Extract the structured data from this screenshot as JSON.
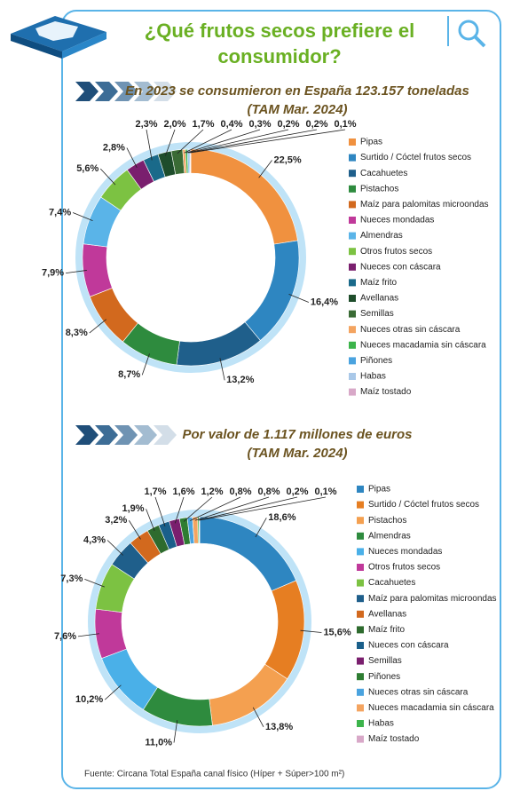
{
  "header": {
    "title": "¿Qué frutos secos prefiere el consumidor?"
  },
  "chart_data": [
    {
      "type": "donut",
      "title": "En 2023 se consumieron en España 123.157 toneladas",
      "subtitle": "(TAM Mar. 2024)",
      "categories": [
        "Pipas",
        "Surtido / Cóctel frutos secos",
        "Cacahuetes",
        "Pistachos",
        "Maíz para palomitas microondas",
        "Nueces mondadas",
        "Almendras",
        "Otros frutos secos",
        "Nueces con cáscara",
        "Maíz frito",
        "Avellanas",
        "Semillas",
        "Nueces otras sin cáscara",
        "Nueces macadamia sin cáscara",
        "Piñones",
        "Habas",
        "Maíz tostado"
      ],
      "values": [
        22.5,
        16.4,
        13.2,
        8.7,
        8.3,
        7.9,
        7.4,
        5.6,
        2.8,
        2.3,
        2.0,
        1.7,
        0.4,
        0.3,
        0.2,
        0.2,
        0.1
      ],
      "value_labels": [
        "22,5%",
        "16,4%",
        "13,2%",
        "8,7%",
        "8,3%",
        "7,9%",
        "7,4%",
        "5,6%",
        "2,8%",
        "2,3%",
        "2,0%",
        "1,7%",
        "0,4%",
        "0,3%",
        "0,2%",
        "0,2%",
        "0,1%"
      ],
      "colors": [
        "#f0913f",
        "#2e86c1",
        "#1f5f8b",
        "#2e8b3e",
        "#d2691e",
        "#c0399a",
        "#5ab4e8",
        "#7cc242",
        "#7a1f6e",
        "#1a6a8a",
        "#1e4d2b",
        "#3a6b35",
        "#f4a460",
        "#3cb44b",
        "#4aa3df",
        "#a9c8e8",
        "#d8a8c8"
      ]
    },
    {
      "type": "donut",
      "title": "Por valor de 1.117 millones de euros",
      "subtitle": "(TAM Mar. 2024)",
      "categories": [
        "Pipas",
        "Surtido / Cóctel frutos secos",
        "Pistachos",
        "Almendras",
        "Nueces mondadas",
        "Otros frutos secos",
        "Cacahuetes",
        "Maíz para palomitas microondas",
        "Avellanas",
        "Maíz frito",
        "Nueces con cáscara",
        "Semillas",
        "Piñones",
        "Nueces otras sin cáscara",
        "Nueces macadamia sin cáscara",
        "Habas",
        "Maíz tostado"
      ],
      "values": [
        18.6,
        15.6,
        13.8,
        11.0,
        10.2,
        7.6,
        7.3,
        4.3,
        3.2,
        1.9,
        1.7,
        1.6,
        1.2,
        0.8,
        0.8,
        0.2,
        0.1
      ],
      "value_labels": [
        "18,6%",
        "15,6%",
        "13,8%",
        "11,0%",
        "10,2%",
        "7,6%",
        "7,3%",
        "4,3%",
        "3,2%",
        "1,9%",
        "1,7%",
        "1,6%",
        "1,2%",
        "0,8%",
        "0,8%",
        "0,2%",
        "0,1%"
      ],
      "colors": [
        "#2e86c1",
        "#e67e22",
        "#f4a050",
        "#2e8b3e",
        "#4ab0e8",
        "#c0399a",
        "#7cc242",
        "#1f5f8b",
        "#d2691e",
        "#2e6b2e",
        "#1a5f8a",
        "#7a1f6e",
        "#2e7d32",
        "#4aa3df",
        "#f4a460",
        "#3cb44b",
        "#d8a8c8"
      ]
    }
  ],
  "footer": {
    "source": "Fuente: Circana Total España canal físico (Híper + Súper>100 m²)"
  }
}
